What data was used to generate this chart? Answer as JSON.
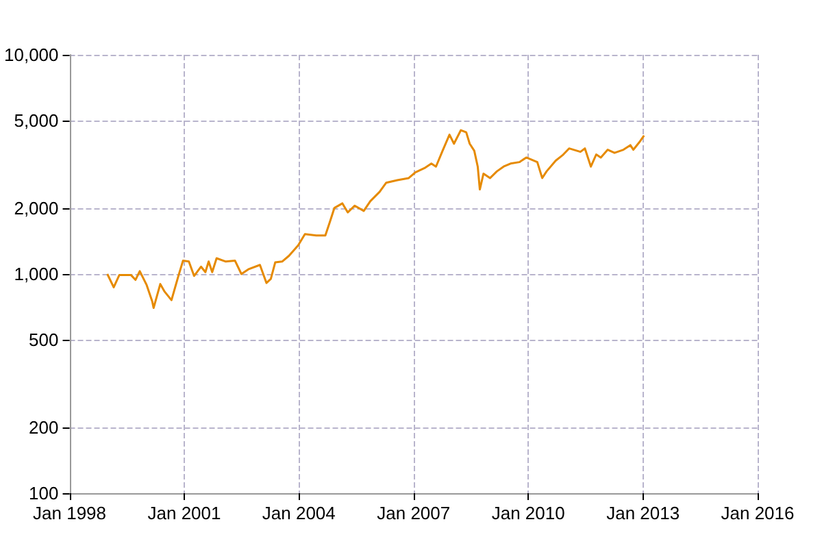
{
  "chart_data": {
    "type": "line",
    "log": "y",
    "grid": true,
    "marker": "none",
    "line_style": "solid",
    "xlim": [
      "1998-01-01",
      "2016-01-01"
    ],
    "xticks": [
      {
        "value": "1998-01-01",
        "label": "Jan 1998"
      },
      {
        "value": "2001-01-01",
        "label": "Jan 2001"
      },
      {
        "value": "2004-01-01",
        "label": "Jan 2004"
      },
      {
        "value": "2007-01-01",
        "label": "Jan 2007"
      },
      {
        "value": "2010-01-01",
        "label": "Jan 2010"
      },
      {
        "value": "2013-01-01",
        "label": "Jan 2013"
      },
      {
        "value": "2016-01-01",
        "label": "Jan 2016"
      }
    ],
    "ylim": [
      100,
      10000
    ],
    "yticks": [
      100,
      200,
      500,
      {
        "value": 1000,
        "label": "1,000"
      },
      {
        "value": 2000,
        "label": "2,000"
      },
      {
        "value": 5000,
        "label": "5,000"
      },
      {
        "value": 10000,
        "label": "10,000"
      }
    ],
    "x": [
      "1998-12-28",
      "1999-02-27",
      "1999-04-22",
      "1999-08-10",
      "1999-09-23",
      "1999-11-03",
      "2000-01-08",
      "2000-03-01",
      "2000-03-14",
      "2000-05-17",
      "2000-06-28",
      "2000-09-01",
      "2000-11-06",
      "2000-12-20",
      "2001-02-14",
      "2001-04-05",
      "2001-06-10",
      "2001-07-22",
      "2001-08-22",
      "2001-09-25",
      "2001-11-06",
      "2002-02-02",
      "2002-05-01",
      "2002-07-01",
      "2002-09-05",
      "2002-12-25",
      "2003-02-25",
      "2003-04-08",
      "2003-05-20",
      "2003-07-25",
      "2003-09-28",
      "2003-12-25",
      "2004-02-28",
      "2004-06-15",
      "2004-09-10",
      "2004-10-20",
      "2004-12-05",
      "2005-02-20",
      "2005-04-12",
      "2005-06-17",
      "2005-09-12",
      "2005-11-14",
      "2006-02-10",
      "2006-04-15",
      "2006-07-30",
      "2006-11-16",
      "2007-01-18",
      "2007-04-15",
      "2007-06-20",
      "2007-08-03",
      "2007-10-05",
      "2007-12-10",
      "2008-01-22",
      "2008-03-28",
      "2008-05-18",
      "2008-06-20",
      "2008-08-03",
      "2008-09-05",
      "2008-09-25",
      "2008-10-30",
      "2009-01-01",
      "2009-03-07",
      "2009-05-10",
      "2009-07-15",
      "2009-10-08",
      "2009-12-13",
      "2010-03-28",
      "2010-05-14",
      "2010-06-25",
      "2010-09-20",
      "2010-11-24",
      "2011-01-26",
      "2011-05-14",
      "2011-06-26",
      "2011-08-22",
      "2011-10-12",
      "2011-11-25",
      "2012-01-30",
      "2012-04-04",
      "2012-06-28",
      "2012-09-02",
      "2012-10-01",
      "2012-11-25",
      "2013-01-11"
    ],
    "series": [
      {
        "color": "#e68a00",
        "values": [
          1000,
          870,
          990,
          990,
          940,
          1030,
          890,
          750,
          700,
          900,
          830,
          760,
          980,
          1150,
          1140,
          980,
          1080,
          1020,
          1140,
          1020,
          1180,
          1140,
          1150,
          1000,
          1050,
          1100,
          910,
          950,
          1130,
          1140,
          1210,
          1350,
          1520,
          1500,
          1500,
          1710,
          2000,
          2100,
          1910,
          2050,
          1940,
          2150,
          2370,
          2610,
          2680,
          2740,
          2910,
          3040,
          3190,
          3090,
          3650,
          4320,
          3930,
          4530,
          4430,
          3930,
          3650,
          3090,
          2430,
          2870,
          2740,
          2940,
          3090,
          3190,
          3240,
          3400,
          3240,
          2740,
          2940,
          3290,
          3480,
          3740,
          3610,
          3740,
          3090,
          3510,
          3400,
          3690,
          3570,
          3690,
          3870,
          3690,
          3980,
          4280
        ]
      }
    ]
  }
}
